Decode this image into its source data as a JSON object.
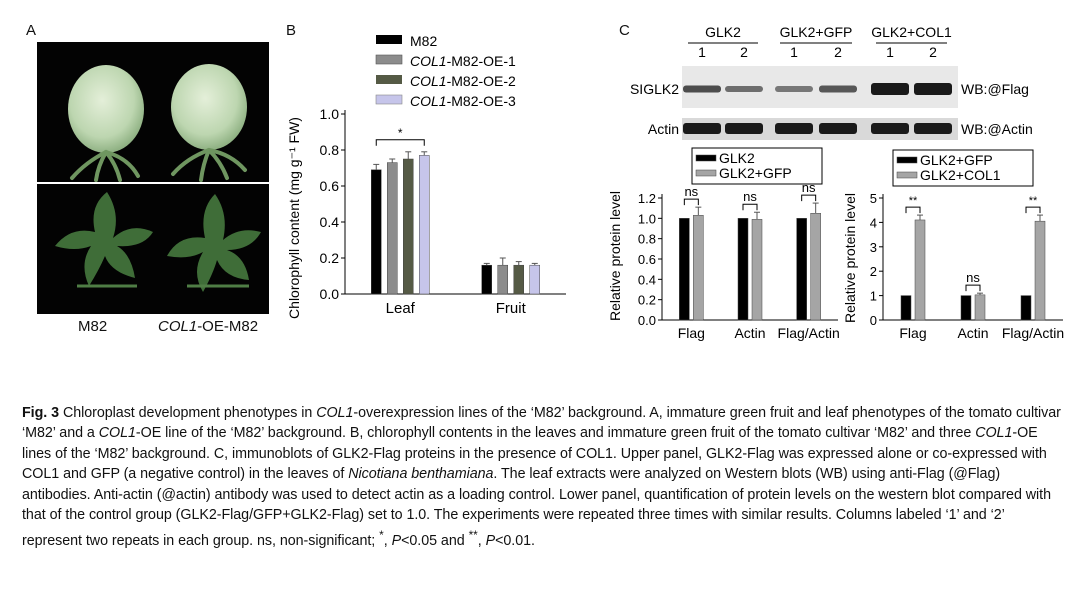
{
  "figure": {
    "panel_labels": {
      "a": "A",
      "b": "B",
      "c": "C"
    },
    "panel_a": {
      "labels": [
        {
          "plain": "M82",
          "italic": "",
          "suffix": ""
        },
        {
          "plain": "",
          "italic": "COL1",
          "suffix": "-OE-M82"
        }
      ]
    },
    "panel_c_blot": {
      "groups": [
        {
          "name": "GLK2",
          "lanes": [
            "1",
            "2"
          ]
        },
        {
          "name": "GLK2+GFP",
          "lanes": [
            "1",
            "2"
          ]
        },
        {
          "name": "GLK2+COL1",
          "lanes": [
            "1",
            "2"
          ]
        }
      ],
      "rows": [
        {
          "label": "SIGLK2",
          "probe": "WB:@Flag"
        },
        {
          "label": "Actin",
          "probe": "WB:@Actin"
        }
      ],
      "band_colors": {
        "band": "#1a1a1a",
        "background": "#e8e8e8"
      }
    }
  },
  "chart_data": [
    {
      "type": "bar",
      "ylabel": "Chlorophyll content (mg g⁻¹ FW)",
      "categories": [
        "Leaf",
        "Fruit"
      ],
      "ylim": [
        0,
        1.0
      ],
      "yticks": [
        "0.0",
        "0.2",
        "0.4",
        "0.6",
        "0.8",
        "1.0"
      ],
      "series": [
        {
          "name": "M82",
          "name_italic": "",
          "name_suffix": "",
          "color": "#000000",
          "values": [
            0.69,
            0.16
          ],
          "errors": [
            0.03,
            0.01
          ]
        },
        {
          "name": "COL1-M82-OE-1",
          "name_italic": "COL1",
          "name_suffix": "-M82-OE-1",
          "color": "#8c8c8c",
          "values": [
            0.73,
            0.16
          ],
          "errors": [
            0.02,
            0.04
          ]
        },
        {
          "name": "COL1-M82-OE-2",
          "name_italic": "COL1",
          "name_suffix": "-M82-OE-2",
          "color": "#555a45",
          "values": [
            0.75,
            0.16
          ],
          "errors": [
            0.04,
            0.02
          ]
        },
        {
          "name": "COL1-M82-OE-3",
          "name_italic": "COL1",
          "name_suffix": "-M82-OE-3",
          "color": "#c6c5ea",
          "values": [
            0.77,
            0.16
          ],
          "errors": [
            0.02,
            0.01
          ]
        }
      ],
      "annotations": [
        {
          "category": "Leaf",
          "text": "*"
        }
      ],
      "legend": "top"
    },
    {
      "type": "bar",
      "ylabel": "Relative protein level",
      "categories": [
        "Flag",
        "Actin",
        "Flag/Actin"
      ],
      "ylim": [
        0,
        1.2
      ],
      "yticks": [
        "0.0",
        "0.2",
        "0.4",
        "0.6",
        "0.8",
        "1.0",
        "1.2"
      ],
      "series": [
        {
          "name": "GLK2",
          "color": "#000000",
          "values": [
            1.0,
            1.0,
            1.0
          ],
          "errors": [
            0,
            0,
            0
          ]
        },
        {
          "name": "GLK2+GFP",
          "color": "#a5a5a5",
          "values": [
            1.03,
            0.99,
            1.05
          ],
          "errors": [
            0.08,
            0.07,
            0.1
          ]
        }
      ],
      "annotations": [
        {
          "category": "Flag",
          "text": "ns"
        },
        {
          "category": "Actin",
          "text": "ns"
        },
        {
          "category": "Flag/Actin",
          "text": "ns"
        }
      ],
      "legend": "top"
    },
    {
      "type": "bar",
      "ylabel": "Relative protein level",
      "categories": [
        "Flag",
        "Actin",
        "Flag/Actin"
      ],
      "ylim": [
        0,
        5
      ],
      "yticks": [
        "0",
        "1",
        "2",
        "3",
        "4",
        "5"
      ],
      "series": [
        {
          "name": "GLK2+GFP",
          "color": "#000000",
          "values": [
            1.0,
            1.0,
            1.0
          ],
          "errors": [
            0,
            0,
            0
          ]
        },
        {
          "name": "GLK2+COL1",
          "color": "#a5a5a5",
          "values": [
            4.1,
            1.03,
            4.05
          ],
          "errors": [
            0.2,
            0.07,
            0.25
          ]
        }
      ],
      "annotations": [
        {
          "category": "Flag",
          "text": "**"
        },
        {
          "category": "Actin",
          "text": "ns"
        },
        {
          "category": "Flag/Actin",
          "text": "**"
        }
      ],
      "legend": "top"
    }
  ],
  "caption": {
    "fig_label": "Fig. 3",
    "t1": " Chloroplast development phenotypes in ",
    "i1": "COL1",
    "t2": "-overexpression lines of the ‘M82’ background.  A, immature green fruit and leaf phenotypes of the tomato cultivar ‘M82’ and a ",
    "i2": "COL1",
    "t3": "-OE line of the ‘M82’ background.  B, chlorophyll contents in the leaves and immature green fruit of the tomato cultivar ‘M82’ and three ",
    "i3": "COL1",
    "t4": "-OE lines of the ‘M82’ background.  C, immunoblots of GLK2-Flag proteins in the presence of COL1.  Upper panel, GLK2-Flag was expressed alone or co-expressed with COL1 and GFP (a negative control) in the leaves of ",
    "i4": "Nicotiana benthamiana",
    "t5": ".  The leaf extracts were analyzed on Western blots (WB) using anti-Flag (@Flag) antibodies.  Anti-actin (@actin) antibody was used to detect actin as a loading control.  Lower panel, quantification of protein levels on the western blot compared with that of the control group (GLK2-Flag/GFP+GLK2-Flag) set to 1.0.  The experiments were repeated three times with similar results.  Columns labeled ‘1’ and ‘2’ represent two repeats in each group.  ns, non-significant; ",
    "s1": "*",
    "t6": ", ",
    "i5": "P",
    "t7": "<0.05 and ",
    "s2": "**",
    "t8": ", ",
    "i6": "P",
    "t9": "<0.01."
  }
}
